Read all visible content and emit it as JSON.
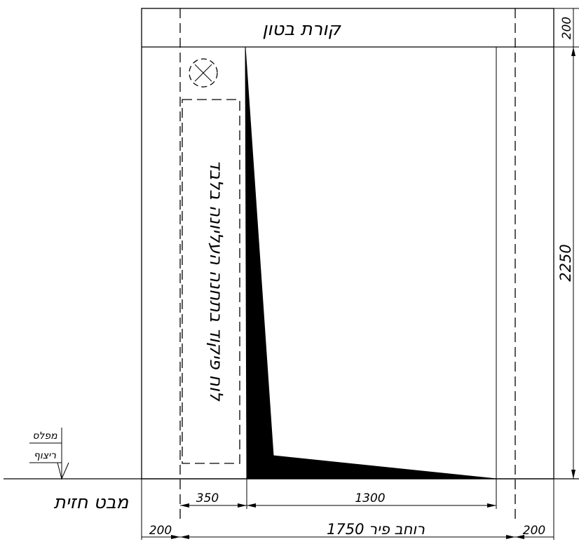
{
  "labels": {
    "beam": "קורת בטון",
    "panel": "לוח פיקוד בתחנה העליונה בלבד",
    "pit_top": "מפלס",
    "pit_bottom": "ריצוף",
    "view": "מבט חזית"
  },
  "dimensions": {
    "beam_height": "200",
    "height": "2250",
    "left_gap": "350",
    "door_width": "1300",
    "left_wall": "200",
    "right_wall": "200",
    "shaft_width": "1750 רוחב פיר"
  }
}
